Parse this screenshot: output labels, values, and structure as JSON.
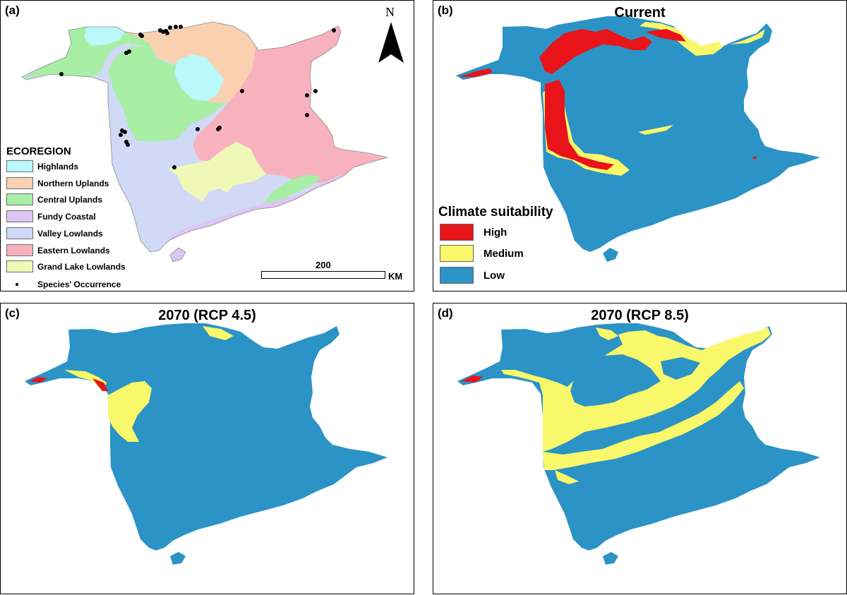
{
  "panels": {
    "a": {
      "label": "(a)",
      "title": ""
    },
    "b": {
      "label": "(b)",
      "title": "Current"
    },
    "c": {
      "label": "(c)",
      "title": "2070 (RCP 4.5)"
    },
    "d": {
      "label": "(d)",
      "title": "2070 (RCP 8.5)"
    }
  },
  "ecoregion_legend": {
    "title": "ECOREGION",
    "items": [
      {
        "label": "Highlands",
        "color": "#b9f8fb"
      },
      {
        "label": "Northern Uplands",
        "color": "#f9d1b1"
      },
      {
        "label": "Central Uplands",
        "color": "#a8eea5"
      },
      {
        "label": "Fundy Coastal",
        "color": "#ddc6f5"
      },
      {
        "label": "Valley Lowlands",
        "color": "#d0d9f6"
      },
      {
        "label": "Eastern Lowlands",
        "color": "#f8b2bd"
      },
      {
        "label": "Grand Lake Lowlands",
        "color": "#f0f8b8"
      }
    ],
    "occurrence_label": "Species' Occurrence"
  },
  "scale": {
    "value": "200",
    "unit": "KM"
  },
  "north_arrow": {
    "letter": "N",
    "icon": "north-arrow-icon"
  },
  "suitability_legend": {
    "title": "Climate suitability",
    "items": [
      {
        "label": "High",
        "color": "#e8141a"
      },
      {
        "label": "Medium",
        "color": "#f8f86a"
      },
      {
        "label": "Low",
        "color": "#2b93c6"
      }
    ]
  }
}
